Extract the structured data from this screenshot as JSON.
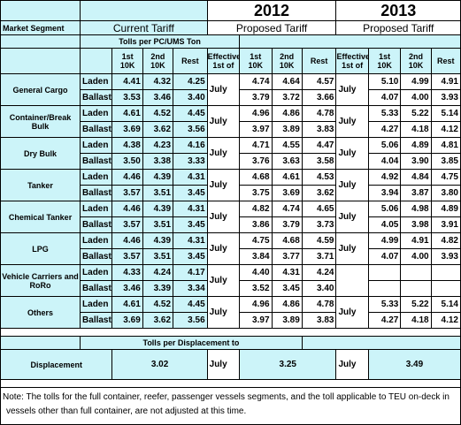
{
  "headers": {
    "market_segment": "Market Segment",
    "current_tariff": "Current Tariff",
    "year_2012": "2012",
    "year_2013": "2013",
    "proposed_tariff": "Proposed Tariff",
    "tolls_per_pc": "Tolls per PC/UMS Ton",
    "col_1st_10k_a": "1st",
    "col_1st_10k_b": "10K",
    "col_2nd_10k_a": "2nd",
    "col_2nd_10k_b": "10K",
    "col_rest": "Rest",
    "effective_1st_of_a": "Effective",
    "effective_1st_of_b": "1st of"
  },
  "rows": [
    {
      "segment": "General Cargo",
      "laden": {
        "label": "Laden",
        "cur": [
          "4.41",
          "4.32",
          "4.25"
        ],
        "p12": [
          "4.74",
          "4.64",
          "4.57"
        ],
        "p13": [
          "5.10",
          "4.99",
          "4.91"
        ]
      },
      "ballast": {
        "label": "Ballast",
        "cur": [
          "3.53",
          "3.46",
          "3.40"
        ],
        "p12": [
          "3.79",
          "3.72",
          "3.66"
        ],
        "p13": [
          "4.07",
          "4.00",
          "3.93"
        ]
      },
      "eff12": "July",
      "eff13": "July"
    },
    {
      "segment": "Container/Break Bulk",
      "laden": {
        "label": "Laden",
        "cur": [
          "4.61",
          "4.52",
          "4.45"
        ],
        "p12": [
          "4.96",
          "4.86",
          "4.78"
        ],
        "p13": [
          "5.33",
          "5.22",
          "5.14"
        ]
      },
      "ballast": {
        "label": "Ballast",
        "cur": [
          "3.69",
          "3.62",
          "3.56"
        ],
        "p12": [
          "3.97",
          "3.89",
          "3.83"
        ],
        "p13": [
          "4.27",
          "4.18",
          "4.12"
        ]
      },
      "eff12": "July",
      "eff13": "July"
    },
    {
      "segment": "Dry Bulk",
      "laden": {
        "label": "Laden",
        "cur": [
          "4.38",
          "4.23",
          "4.16"
        ],
        "p12": [
          "4.71",
          "4.55",
          "4.47"
        ],
        "p13": [
          "5.06",
          "4.89",
          "4.81"
        ]
      },
      "ballast": {
        "label": "Ballast",
        "cur": [
          "3.50",
          "3.38",
          "3.33"
        ],
        "p12": [
          "3.76",
          "3.63",
          "3.58"
        ],
        "p13": [
          "4.04",
          "3.90",
          "3.85"
        ]
      },
      "eff12": "July",
      "eff13": "July"
    },
    {
      "segment": "Tanker",
      "laden": {
        "label": "Laden",
        "cur": [
          "4.46",
          "4.39",
          "4.31"
        ],
        "p12": [
          "4.68",
          "4.61",
          "4.53"
        ],
        "p13": [
          "4.92",
          "4.84",
          "4.75"
        ]
      },
      "ballast": {
        "label": "Ballast",
        "cur": [
          "3.57",
          "3.51",
          "3.45"
        ],
        "p12": [
          "3.75",
          "3.69",
          "3.62"
        ],
        "p13": [
          "3.94",
          "3.87",
          "3.80"
        ]
      },
      "eff12": "July",
      "eff13": "July"
    },
    {
      "segment": "Chemical Tanker",
      "laden": {
        "label": "Laden",
        "cur": [
          "4.46",
          "4.39",
          "4.31"
        ],
        "p12": [
          "4.82",
          "4.74",
          "4.65"
        ],
        "p13": [
          "5.06",
          "4.98",
          "4.89"
        ]
      },
      "ballast": {
        "label": "Ballast",
        "cur": [
          "3.57",
          "3.51",
          "3.45"
        ],
        "p12": [
          "3.86",
          "3.79",
          "3.73"
        ],
        "p13": [
          "4.05",
          "3.98",
          "3.91"
        ]
      },
      "eff12": "July",
      "eff13": "July"
    },
    {
      "segment": "LPG",
      "laden": {
        "label": "Laden",
        "cur": [
          "4.46",
          "4.39",
          "4.31"
        ],
        "p12": [
          "4.75",
          "4.68",
          "4.59"
        ],
        "p13": [
          "4.99",
          "4.91",
          "4.82"
        ]
      },
      "ballast": {
        "label": "Ballast",
        "cur": [
          "3.57",
          "3.51",
          "3.45"
        ],
        "p12": [
          "3.84",
          "3.77",
          "3.71"
        ],
        "p13": [
          "4.07",
          "4.00",
          "3.93"
        ]
      },
      "eff12": "July",
      "eff13": "July"
    },
    {
      "segment": "Vehicle Carriers and RoRo",
      "laden": {
        "label": "Laden",
        "cur": [
          "4.33",
          "4.24",
          "4.17"
        ],
        "p12": [
          "4.40",
          "4.31",
          "4.24"
        ],
        "p13": [
          "",
          "",
          ""
        ]
      },
      "ballast": {
        "label": "Ballast",
        "cur": [
          "3.46",
          "3.39",
          "3.34"
        ],
        "p12": [
          "3.52",
          "3.45",
          "3.40"
        ],
        "p13": [
          "",
          "",
          ""
        ]
      },
      "eff12": "July",
      "eff13": ""
    },
    {
      "segment": "Others",
      "laden": {
        "label": "Laden",
        "cur": [
          "4.61",
          "4.52",
          "4.45"
        ],
        "p12": [
          "4.96",
          "4.86",
          "4.78"
        ],
        "p13": [
          "5.33",
          "5.22",
          "5.14"
        ]
      },
      "ballast": {
        "label": "Ballast",
        "cur": [
          "3.69",
          "3.62",
          "3.56"
        ],
        "p12": [
          "3.97",
          "3.89",
          "3.83"
        ],
        "p13": [
          "4.27",
          "4.18",
          "4.12"
        ]
      },
      "eff12": "July",
      "eff13": "July"
    }
  ],
  "displacement": {
    "header": "Tolls per Displacement to",
    "label": "Displacement",
    "current": "3.02",
    "eff12": "July",
    "p12": "3.25",
    "eff13": "July",
    "p13": "3.49"
  },
  "note": "Note: The tolls for the full container, reefer, passenger vessels segments, and the toll applicable to TEU on-deck in vessels other than full container, are not adjusted at this time."
}
